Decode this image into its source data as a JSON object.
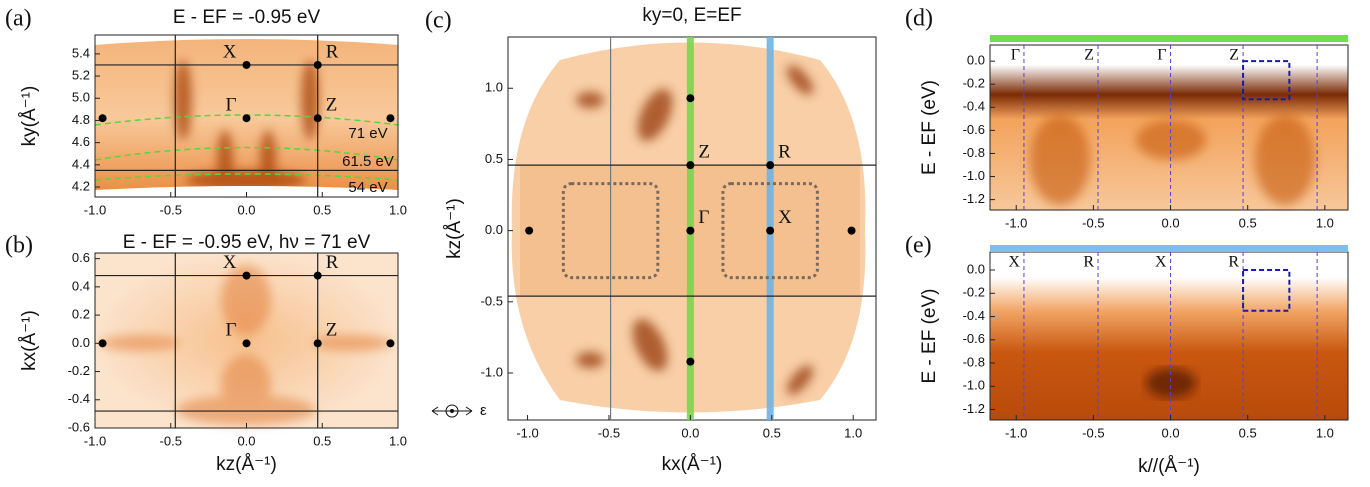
{
  "chart_data": [
    {
      "type": "map",
      "panel_label": "(a)",
      "title": "E - EF = -0.95 eV",
      "ylabel": "ky(Å⁻¹)",
      "xlim": [
        -1.0,
        1.0
      ],
      "ylim": [
        4.11,
        5.57
      ],
      "xticks": [
        {
          "value": -1.0,
          "label": "-1.0"
        },
        {
          "value": -0.5,
          "label": "-0.5"
        },
        {
          "value": 0.0,
          "label": "0.0"
        },
        {
          "value": 0.5,
          "label": "0.5"
        },
        {
          "value": 1.0,
          "label": "1.0"
        }
      ],
      "yticks": [
        4.2,
        4.4,
        4.6,
        4.8,
        {
          "value": 5.0,
          "label": "5.0"
        },
        5.2,
        5.4
      ],
      "vlines": [
        -0.47,
        0.47
      ],
      "hlines": [
        5.3,
        4.35
      ],
      "points": {
        "x": [
          0.0,
          0.47,
          0.0,
          0.47,
          -0.95,
          0.95
        ],
        "y": [
          5.3,
          5.3,
          4.82,
          4.82,
          4.82,
          4.82
        ],
        "labels": [
          "X",
          "R",
          "Γ",
          "Z",
          null,
          null
        ]
      },
      "annotations": [
        "71 eV",
        "61.5 eV",
        "54 eV"
      ]
    },
    {
      "type": "map",
      "panel_label": "(b)",
      "title": "E - EF = -0.95 eV, hν = 71 eV",
      "xlabel": "kz(Å⁻¹)",
      "ylabel": "kx(Å⁻¹)",
      "xlim": [
        -1.0,
        1.0
      ],
      "ylim": [
        -0.6,
        0.64
      ],
      "xticks": [
        {
          "value": -1.0,
          "label": "-1.0"
        },
        {
          "value": -0.5,
          "label": "-0.5"
        },
        {
          "value": 0.0,
          "label": "0.0"
        },
        {
          "value": 0.5,
          "label": "0.5"
        },
        {
          "value": 1.0,
          "label": "1.0"
        }
      ],
      "yticks": [
        -0.6,
        -0.4,
        -0.2,
        {
          "value": 0.0,
          "label": "0.0"
        },
        0.2,
        0.4,
        0.6
      ],
      "vlines": [
        -0.47,
        0.47
      ],
      "hlines": [
        0.48,
        -0.48
      ],
      "points": {
        "x": [
          0.0,
          0.47,
          0.0,
          0.47,
          -0.95,
          0.95
        ],
        "y": [
          0.48,
          0.48,
          0.0,
          0.0,
          0.0,
          0.0
        ],
        "labels": [
          "X",
          "R",
          "Γ",
          "Z",
          null,
          null
        ]
      }
    },
    {
      "type": "map",
      "panel_label": "(c)",
      "title": "ky=0, E=EF",
      "xlabel": "kx(Å⁻¹)",
      "ylabel": "kz(Å⁻¹)",
      "xlim": [
        -1.12,
        1.14
      ],
      "ylim": [
        -1.33,
        1.36
      ],
      "xticks": [
        {
          "value": -1.0,
          "label": "-1.0"
        },
        {
          "value": -0.5,
          "label": "-0.5"
        },
        {
          "value": 0.0,
          "label": "0.0"
        },
        {
          "value": 0.5,
          "label": "0.5"
        },
        {
          "value": 1.0,
          "label": "1.0"
        }
      ],
      "yticks": [
        {
          "value": -1.0,
          "label": "-1.0"
        },
        -0.5,
        {
          "value": 0.0,
          "label": "0.0"
        },
        0.5,
        {
          "value": 1.0,
          "label": "1.0"
        }
      ],
      "vlines": [
        -0.49
      ],
      "hlines": [
        0.46,
        -0.46
      ],
      "cuts": [
        {
          "x": 0.0,
          "color": "#7dd34f"
        },
        {
          "x": 0.49,
          "color": "#6fb2e6"
        }
      ],
      "boxes": [
        {
          "x": [
            -0.78,
            -0.2
          ],
          "y": [
            -0.33,
            0.33
          ]
        },
        {
          "x": [
            0.2,
            0.78
          ],
          "y": [
            -0.33,
            0.33
          ]
        }
      ],
      "points": {
        "x": [
          0.0,
          0.0,
          0.49,
          0.0,
          0.49,
          -0.99,
          0.99,
          0.0
        ],
        "y": [
          0.93,
          0.46,
          0.46,
          0.0,
          0.0,
          0.0,
          0.0,
          -0.92
        ],
        "labels": [
          null,
          "Z",
          "R",
          "Γ",
          "X",
          null,
          null,
          null
        ]
      },
      "annotations": [
        "ε"
      ]
    },
    {
      "type": "map",
      "panel_label": "(d)",
      "ylabel": "E - EF (eV)",
      "bar_color": "#6fe04c",
      "xlim": [
        -1.17,
        1.15
      ],
      "ylim": [
        -1.29,
        0.14
      ],
      "xticks": [
        {
          "value": -1.0,
          "label": "-1.0"
        },
        {
          "value": -0.5,
          "label": "-0.5"
        },
        {
          "value": 0.0,
          "label": "0.0"
        },
        {
          "value": 0.5,
          "label": "0.5"
        },
        {
          "value": 1.0,
          "label": "1.0"
        }
      ],
      "yticks": [
        -1.2,
        {
          "value": -1.0,
          "label": "-1.0"
        },
        -0.8,
        -0.6,
        -0.4,
        -0.2,
        {
          "value": 0.0,
          "label": "0.0"
        }
      ],
      "dashed_vlines": [
        -0.95,
        -0.47,
        0.0,
        0.47,
        0.95
      ],
      "kpoints": {
        "x": [
          -0.95,
          -0.47,
          0.0,
          0.47
        ],
        "labels": [
          "Γ",
          "Z",
          "Γ",
          "Z"
        ]
      },
      "boxes": [
        {
          "x": [
            0.47,
            0.77
          ],
          "y": [
            -0.33,
            0.0
          ]
        }
      ]
    },
    {
      "type": "map",
      "panel_label": "(e)",
      "xlabel": "k//(Å⁻¹)",
      "ylabel": "E - EF (eV)",
      "bar_color": "#79bff0",
      "xlim": [
        -1.17,
        1.15
      ],
      "ylim": [
        -1.29,
        0.155
      ],
      "xticks": [
        {
          "value": -1.0,
          "label": "-1.0"
        },
        {
          "value": -0.5,
          "label": "-0.5"
        },
        {
          "value": 0.0,
          "label": "0.0"
        },
        {
          "value": 0.5,
          "label": "0.5"
        },
        {
          "value": 1.0,
          "label": "1.0"
        }
      ],
      "yticks": [
        -1.2,
        {
          "value": -1.0,
          "label": "-1.0"
        },
        -0.8,
        -0.6,
        -0.4,
        -0.2,
        {
          "value": 0.0,
          "label": "0.0"
        }
      ],
      "dashed_vlines": [
        -0.95,
        -0.47,
        0.0,
        0.47,
        0.95
      ],
      "kpoints": {
        "x": [
          -0.95,
          -0.47,
          0.0,
          0.47
        ],
        "labels": [
          "X",
          "R",
          "X",
          "R"
        ]
      },
      "boxes": [
        {
          "x": [
            0.47,
            0.77
          ],
          "y": [
            -0.35,
            0.0
          ]
        }
      ]
    }
  ]
}
